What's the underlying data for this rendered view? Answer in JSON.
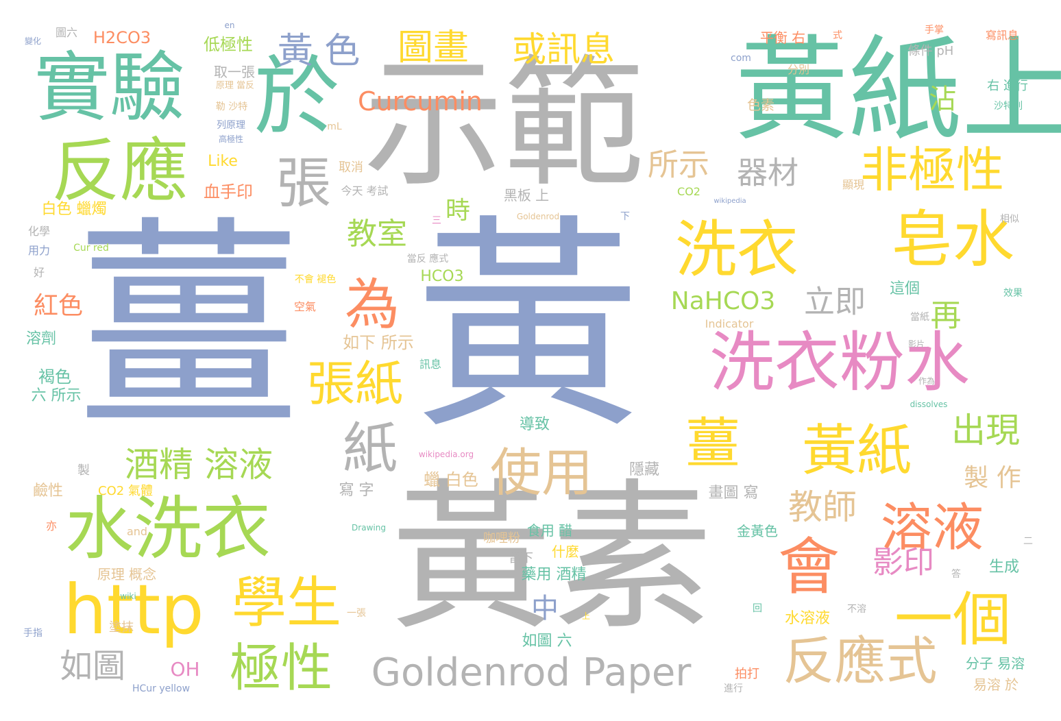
{
  "palette": {
    "blue": "#8da0cb",
    "gray": "#b3b3b3",
    "teal": "#66c2a5",
    "yellow": "#ffd92f",
    "orange": "#fc8d62",
    "green": "#a6d854",
    "pink": "#e78ac3",
    "tan": "#e5c494"
  },
  "words": [
    {
      "text": "薑黃",
      "color": "blue"
    },
    {
      "text": "示範",
      "color": "gray"
    },
    {
      "text": "黃紙上",
      "color": "teal"
    },
    {
      "text": "黃素",
      "color": "gray"
    },
    {
      "text": "實驗",
      "color": "teal"
    },
    {
      "text": "於",
      "color": "teal"
    },
    {
      "text": "反應",
      "color": "green"
    },
    {
      "text": "洗衣粉水",
      "color": "pink"
    },
    {
      "text": "洗衣",
      "color": "yellow"
    },
    {
      "text": "皂水",
      "color": "yellow"
    },
    {
      "text": "水洗衣",
      "color": "green"
    },
    {
      "text": "http",
      "color": "yellow"
    },
    {
      "text": "會",
      "color": "orange"
    },
    {
      "text": "一個",
      "color": "yellow"
    },
    {
      "text": "薑",
      "color": "yellow"
    },
    {
      "text": "黃紙",
      "color": "yellow"
    },
    {
      "text": "反應式",
      "color": "tan"
    },
    {
      "text": "學生",
      "color": "yellow"
    },
    {
      "text": "極性",
      "color": "green"
    },
    {
      "text": "為",
      "color": "orange"
    },
    {
      "text": "張紙",
      "color": "yellow"
    },
    {
      "text": "張",
      "color": "gray"
    },
    {
      "text": "紙",
      "color": "gray"
    },
    {
      "text": "使用",
      "color": "tan"
    },
    {
      "text": "非極性",
      "color": "yellow"
    },
    {
      "text": "溶液",
      "color": "orange"
    },
    {
      "text": "Goldenrod Paper",
      "color": "gray"
    },
    {
      "text": "黃 色",
      "color": "blue"
    },
    {
      "text": "圖畫",
      "color": "yellow"
    },
    {
      "text": "或訊息",
      "color": "yellow"
    },
    {
      "text": "Curcumin",
      "color": "orange"
    },
    {
      "text": "所示",
      "color": "tan"
    },
    {
      "text": "器材",
      "color": "gray"
    },
    {
      "text": "酒精 溶液",
      "color": "green"
    },
    {
      "text": "教室",
      "color": "green"
    },
    {
      "text": "立即",
      "color": "gray"
    },
    {
      "text": "NaHCO3",
      "color": "green"
    },
    {
      "text": "再",
      "color": "green"
    },
    {
      "text": "出現",
      "color": "green"
    },
    {
      "text": "教師",
      "color": "tan"
    },
    {
      "text": "影印",
      "color": "pink"
    },
    {
      "text": "如圖",
      "color": "gray"
    },
    {
      "text": "中",
      "color": "blue"
    },
    {
      "text": "紅色",
      "color": "orange"
    },
    {
      "text": "時",
      "color": "green"
    },
    {
      "text": "沾",
      "color": "green"
    },
    {
      "text": "製 作",
      "color": "tan"
    },
    {
      "text": "OH",
      "color": "pink"
    },
    {
      "text": "H2CO3",
      "color": "orange"
    },
    {
      "text": "低極性",
      "color": "green"
    },
    {
      "text": "血手印",
      "color": "orange"
    },
    {
      "text": "白色 蠟燭",
      "color": "yellow"
    },
    {
      "text": "Like",
      "color": "yellow"
    },
    {
      "text": "HCO3",
      "color": "green"
    },
    {
      "text": "如下 所示",
      "color": "tan"
    },
    {
      "text": "黑板 上",
      "color": "gray"
    },
    {
      "text": "今天 考試",
      "color": "gray"
    },
    {
      "text": "取消",
      "color": "tan"
    },
    {
      "text": "取一張",
      "color": "gray"
    },
    {
      "text": "平衡 右",
      "color": "orange"
    },
    {
      "text": "條件 pH",
      "color": "gray"
    },
    {
      "text": "右 進行",
      "color": "teal"
    },
    {
      "text": "色素",
      "color": "tan"
    },
    {
      "text": "分別",
      "color": "tan"
    },
    {
      "text": "溶劑",
      "color": "teal"
    },
    {
      "text": "褐色",
      "color": "teal"
    },
    {
      "text": "六 所示",
      "color": "teal"
    },
    {
      "text": "蠟 白色",
      "color": "tan"
    },
    {
      "text": "寫 字",
      "color": "gray"
    },
    {
      "text": "鹼性",
      "color": "tan"
    },
    {
      "text": "CO2 氣體",
      "color": "yellow"
    },
    {
      "text": "導致",
      "color": "teal"
    },
    {
      "text": "隱藏",
      "color": "gray"
    },
    {
      "text": "畫圖 寫",
      "color": "gray"
    },
    {
      "text": "食用 醋",
      "color": "teal"
    },
    {
      "text": "什麼",
      "color": "yellow"
    },
    {
      "text": "咖哩粉",
      "color": "tan"
    },
    {
      "text": "留下",
      "color": "gray"
    },
    {
      "text": "藥用 酒精",
      "color": "teal"
    },
    {
      "text": "原理 概念",
      "color": "tan"
    },
    {
      "text": "水溶液",
      "color": "yellow"
    },
    {
      "text": "如圖 六",
      "color": "teal"
    },
    {
      "text": "金黃色",
      "color": "teal"
    },
    {
      "text": "生成",
      "color": "teal"
    },
    {
      "text": "分子 易溶",
      "color": "teal"
    },
    {
      "text": "易溶 於",
      "color": "tan"
    },
    {
      "text": "拍打",
      "color": "orange"
    },
    {
      "text": "這個",
      "color": "teal"
    },
    {
      "text": "Indicator",
      "color": "tan"
    },
    {
      "text": "CO2",
      "color": "green"
    },
    {
      "text": "顯現",
      "color": "tan"
    },
    {
      "text": "Goldenrod",
      "color": "tan"
    },
    {
      "text": "wikipedia.org",
      "color": "pink"
    },
    {
      "text": "dissolves",
      "color": "teal"
    },
    {
      "text": "Drawing",
      "color": "teal"
    },
    {
      "text": "and",
      "color": "tan"
    },
    {
      "text": "Cur red",
      "color": "green"
    },
    {
      "text": "HCur yellow",
      "color": "blue"
    },
    {
      "text": "化學",
      "color": "gray"
    },
    {
      "text": "用力",
      "color": "blue"
    },
    {
      "text": "好",
      "color": "gray"
    },
    {
      "text": "mL",
      "color": "tan"
    },
    {
      "text": "com",
      "color": "blue"
    },
    {
      "text": "en",
      "color": "blue"
    },
    {
      "text": "圖六",
      "color": "gray"
    },
    {
      "text": "變化",
      "color": "blue"
    },
    {
      "text": "手掌",
      "color": "orange"
    },
    {
      "text": "寫訊息",
      "color": "orange"
    },
    {
      "text": "沙特列",
      "color": "teal"
    },
    {
      "text": "效果",
      "color": "teal"
    },
    {
      "text": "相似",
      "color": "gray"
    },
    {
      "text": "不溶",
      "color": "gray"
    },
    {
      "text": "答",
      "color": "gray"
    },
    {
      "text": "二",
      "color": "gray"
    },
    {
      "text": "進行",
      "color": "gray"
    },
    {
      "text": "回",
      "color": "teal"
    },
    {
      "text": "上",
      "color": "yellow"
    },
    {
      "text": "一張",
      "color": "tan"
    },
    {
      "text": "空氣",
      "color": "orange"
    },
    {
      "text": "不會 褪色",
      "color": "yellow"
    },
    {
      "text": "三",
      "color": "pink"
    },
    {
      "text": "下",
      "color": "blue"
    },
    {
      "text": "式",
      "color": "orange"
    },
    {
      "text": "原理 當反",
      "color": "tan"
    },
    {
      "text": "勒 沙特",
      "color": "tan"
    },
    {
      "text": "列原理",
      "color": "blue"
    },
    {
      "text": "高極性",
      "color": "blue"
    },
    {
      "text": "當反 應式",
      "color": "gray"
    },
    {
      "text": "wikipedia",
      "color": "blue"
    },
    {
      "text": "wiki",
      "color": "teal"
    },
    {
      "text": "手指",
      "color": "blue"
    },
    {
      "text": "塗抹",
      "color": "tan"
    },
    {
      "text": "亦",
      "color": "orange"
    },
    {
      "text": "製",
      "color": "gray"
    },
    {
      "text": "訊息",
      "color": "teal"
    },
    {
      "text": "當紙",
      "color": "gray"
    },
    {
      "text": "影片",
      "color": "gray"
    },
    {
      "text": "作為",
      "color": "gray"
    }
  ]
}
